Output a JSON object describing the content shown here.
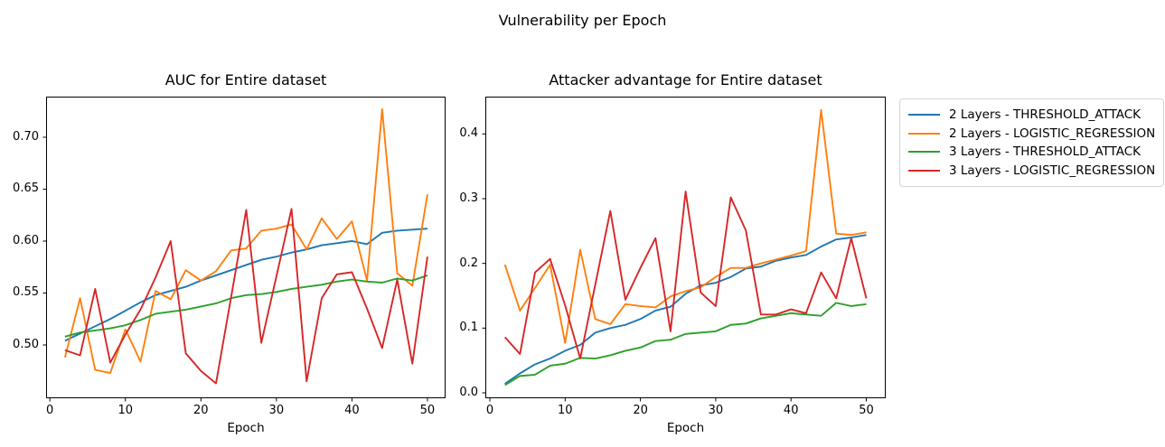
{
  "figure": {
    "suptitle": "Vulnerability per Epoch",
    "background": "#ffffff",
    "axis_color": "#000000"
  },
  "legend": {
    "position": "outside-right",
    "entries": [
      {
        "label": "2 Layers - THRESHOLD_ATTACK",
        "color": "#1f77b4"
      },
      {
        "label": "2 Layers - LOGISTIC_REGRESSION",
        "color": "#ff7f0e"
      },
      {
        "label": "3 Layers - THRESHOLD_ATTACK",
        "color": "#2ca02c"
      },
      {
        "label": "3 Layers - LOGISTIC_REGRESSION",
        "color": "#d62728"
      }
    ]
  },
  "chart_data": [
    {
      "type": "line",
      "title": "AUC for Entire dataset",
      "xlabel": "Epoch",
      "ylabel": "",
      "grid": false,
      "xlim": [
        -0.5,
        52.4
      ],
      "ylim": [
        0.4487,
        0.7391
      ],
      "x_ticks": [
        {
          "v": 0,
          "label": "0"
        },
        {
          "v": 10,
          "label": "10"
        },
        {
          "v": 20,
          "label": "20"
        },
        {
          "v": 30,
          "label": "30"
        },
        {
          "v": 40,
          "label": "40"
        },
        {
          "v": 50,
          "label": "50"
        }
      ],
      "y_ticks": [
        {
          "v": 0.5,
          "label": "0.50"
        },
        {
          "v": 0.55,
          "label": "0.55"
        },
        {
          "v": 0.6,
          "label": "0.60"
        },
        {
          "v": 0.65,
          "label": "0.65"
        },
        {
          "v": 0.7,
          "label": "0.70"
        }
      ],
      "x": [
        2,
        4,
        6,
        8,
        10,
        12,
        14,
        16,
        18,
        20,
        22,
        24,
        26,
        28,
        30,
        32,
        34,
        36,
        38,
        40,
        42,
        44,
        46,
        48,
        50
      ],
      "series": [
        {
          "name": "2 Layers - THRESHOLD_ATTACK",
          "color": "#1f77b4",
          "values": [
            0.504,
            0.511,
            0.518,
            0.525,
            0.533,
            0.541,
            0.548,
            0.552,
            0.556,
            0.562,
            0.567,
            0.572,
            0.577,
            0.582,
            0.585,
            0.589,
            0.592,
            0.596,
            0.598,
            0.6,
            0.597,
            0.608,
            0.61,
            0.611,
            0.612
          ]
        },
        {
          "name": "2 Layers - LOGISTIC_REGRESSION",
          "color": "#ff7f0e",
          "values": [
            0.488,
            0.545,
            0.476,
            0.473,
            0.515,
            0.484,
            0.552,
            0.544,
            0.572,
            0.562,
            0.571,
            0.591,
            0.593,
            0.61,
            0.612,
            0.616,
            0.592,
            0.622,
            0.602,
            0.619,
            0.562,
            0.727,
            0.569,
            0.557,
            0.645
          ]
        },
        {
          "name": "3 Layers - THRESHOLD_ATTACK",
          "color": "#2ca02c",
          "values": [
            0.508,
            0.512,
            0.514,
            0.516,
            0.519,
            0.524,
            0.53,
            0.532,
            0.534,
            0.537,
            0.54,
            0.545,
            0.548,
            0.549,
            0.551,
            0.554,
            0.556,
            0.558,
            0.561,
            0.563,
            0.561,
            0.56,
            0.564,
            0.562,
            0.567
          ]
        },
        {
          "name": "3 Layers - LOGISTIC_REGRESSION",
          "color": "#d62728",
          "values": [
            0.495,
            0.49,
            0.554,
            0.483,
            0.51,
            0.534,
            0.565,
            0.6,
            0.492,
            0.475,
            0.463,
            0.546,
            0.63,
            0.502,
            0.566,
            0.631,
            0.465,
            0.545,
            0.568,
            0.57,
            0.535,
            0.497,
            0.563,
            0.482,
            0.585
          ]
        }
      ]
    },
    {
      "type": "line",
      "title": "Attacker advantage for Entire dataset",
      "xlabel": "Epoch",
      "ylabel": "",
      "grid": false,
      "xlim": [
        -0.6,
        52.58
      ],
      "ylim": [
        -0.00837,
        0.45766
      ],
      "x_ticks": [
        {
          "v": 0,
          "label": "0"
        },
        {
          "v": 10,
          "label": "10"
        },
        {
          "v": 20,
          "label": "20"
        },
        {
          "v": 30,
          "label": "30"
        },
        {
          "v": 40,
          "label": "40"
        },
        {
          "v": 50,
          "label": "50"
        }
      ],
      "y_ticks": [
        {
          "v": 0.0,
          "label": "0.0"
        },
        {
          "v": 0.1,
          "label": "0.1"
        },
        {
          "v": 0.2,
          "label": "0.2"
        },
        {
          "v": 0.3,
          "label": "0.3"
        },
        {
          "v": 0.4,
          "label": "0.4"
        }
      ],
      "x": [
        2,
        4,
        6,
        8,
        10,
        12,
        14,
        16,
        18,
        20,
        22,
        24,
        26,
        28,
        30,
        32,
        34,
        36,
        38,
        40,
        42,
        44,
        46,
        48,
        50
      ],
      "series": [
        {
          "name": "2 Layers - THRESHOLD_ATTACK",
          "color": "#1f77b4",
          "values": [
            0.014,
            0.03,
            0.044,
            0.053,
            0.065,
            0.074,
            0.093,
            0.1,
            0.105,
            0.114,
            0.127,
            0.133,
            0.153,
            0.166,
            0.17,
            0.179,
            0.192,
            0.195,
            0.204,
            0.209,
            0.213,
            0.226,
            0.237,
            0.24,
            0.244
          ]
        },
        {
          "name": "2 Layers - LOGISTIC_REGRESSION",
          "color": "#ff7f0e",
          "values": [
            0.198,
            0.127,
            0.162,
            0.198,
            0.077,
            0.221,
            0.114,
            0.106,
            0.137,
            0.134,
            0.132,
            0.149,
            0.157,
            0.163,
            0.179,
            0.193,
            0.193,
            0.2,
            0.206,
            0.212,
            0.219,
            0.437,
            0.246,
            0.244,
            0.248
          ]
        },
        {
          "name": "3 Layers - THRESHOLD_ATTACK",
          "color": "#2ca02c",
          "values": [
            0.012,
            0.026,
            0.028,
            0.042,
            0.045,
            0.054,
            0.053,
            0.058,
            0.065,
            0.07,
            0.08,
            0.082,
            0.091,
            0.093,
            0.095,
            0.105,
            0.107,
            0.115,
            0.119,
            0.123,
            0.121,
            0.119,
            0.139,
            0.134,
            0.137
          ]
        },
        {
          "name": "3 Layers - LOGISTIC_REGRESSION",
          "color": "#d62728",
          "values": [
            0.086,
            0.06,
            0.186,
            0.207,
            0.135,
            0.053,
            0.167,
            0.281,
            0.144,
            0.193,
            0.239,
            0.095,
            0.311,
            0.155,
            0.134,
            0.302,
            0.251,
            0.121,
            0.121,
            0.129,
            0.123,
            0.186,
            0.146,
            0.239,
            0.146
          ]
        }
      ]
    }
  ]
}
